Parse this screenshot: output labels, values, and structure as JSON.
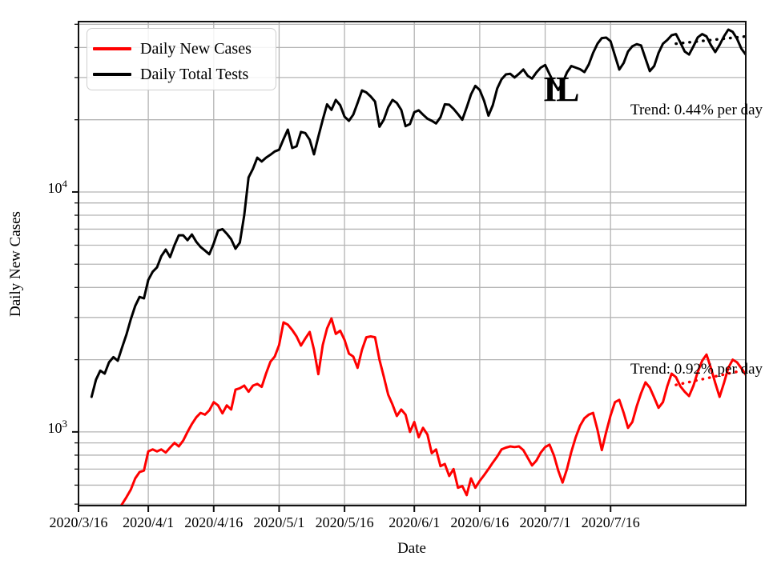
{
  "colors": {
    "background": "#ffffff",
    "grid": "#b4b4b4",
    "spine": "#111111",
    "cases_line": "#ff0000",
    "tests_line": "#000000"
  },
  "chart_data": {
    "type": "line",
    "title": "",
    "xlabel": "Date",
    "ylabel": "Daily New Cases",
    "annotation": "IL",
    "yscale": "log",
    "ylim": [
      493,
      51300
    ],
    "x_total_days": 153,
    "x_start_date": "2020/3/16",
    "x_end_date": "2020/8/16",
    "grid": "both",
    "legend_position": "upper left",
    "x_tick_days": [
      0,
      16,
      31,
      46,
      61,
      77,
      92,
      107,
      122
    ],
    "x_tick_labels": [
      "2020/3/16",
      "2020/4/1",
      "2020/4/16",
      "2020/5/1",
      "2020/5/16",
      "2020/6/1",
      "2020/6/16",
      "2020/7/1",
      "2020/7/16"
    ],
    "y_major_ticks": [
      10000,
      1000
    ],
    "y_major_tick_labels": [
      {
        "base": "10",
        "exp": "4"
      },
      {
        "base": "10",
        "exp": "3"
      }
    ],
    "y_minor_ticks": [
      500,
      600,
      700,
      800,
      900,
      2000,
      3000,
      4000,
      5000,
      6000,
      7000,
      8000,
      9000,
      20000,
      30000,
      40000,
      50000
    ],
    "dates": [
      "2020/3/16",
      "2020/3/17",
      "2020/3/18",
      "2020/3/19",
      "2020/3/20",
      "2020/3/21",
      "2020/3/22",
      "2020/3/23",
      "2020/3/24",
      "2020/3/25",
      "2020/3/26",
      "2020/3/27",
      "2020/3/28",
      "2020/3/29",
      "2020/3/30",
      "2020/3/31",
      "2020/4/1",
      "2020/4/2",
      "2020/4/3",
      "2020/4/4",
      "2020/4/5",
      "2020/4/6",
      "2020/4/7",
      "2020/4/8",
      "2020/4/9",
      "2020/4/10",
      "2020/4/11",
      "2020/4/12",
      "2020/4/13",
      "2020/4/14",
      "2020/4/15",
      "2020/4/16",
      "2020/4/17",
      "2020/4/18",
      "2020/4/19",
      "2020/4/20",
      "2020/4/21",
      "2020/4/22",
      "2020/4/23",
      "2020/4/24",
      "2020/4/25",
      "2020/4/26",
      "2020/4/27",
      "2020/4/28",
      "2020/4/29",
      "2020/4/30",
      "2020/5/1",
      "2020/5/2",
      "2020/5/3",
      "2020/5/4",
      "2020/5/5",
      "2020/5/6",
      "2020/5/7",
      "2020/5/8",
      "2020/5/9",
      "2020/5/10",
      "2020/5/11",
      "2020/5/12",
      "2020/5/13",
      "2020/5/14",
      "2020/5/15",
      "2020/5/16",
      "2020/5/17",
      "2020/5/18",
      "2020/5/19",
      "2020/5/20",
      "2020/5/21",
      "2020/5/22",
      "2020/5/23",
      "2020/5/24",
      "2020/5/25",
      "2020/5/26",
      "2020/5/27",
      "2020/5/28",
      "2020/5/29",
      "2020/5/30",
      "2020/5/31",
      "2020/6/1",
      "2020/6/2",
      "2020/6/3",
      "2020/6/4",
      "2020/6/5",
      "2020/6/6",
      "2020/6/7",
      "2020/6/8",
      "2020/6/9",
      "2020/6/10",
      "2020/6/11",
      "2020/6/12",
      "2020/6/13",
      "2020/6/14",
      "2020/6/15",
      "2020/6/16",
      "2020/6/17",
      "2020/6/18",
      "2020/6/19",
      "2020/6/20",
      "2020/6/21",
      "2020/6/22",
      "2020/6/23",
      "2020/6/24",
      "2020/6/25",
      "2020/6/26",
      "2020/6/27",
      "2020/6/28",
      "2020/6/29",
      "2020/6/30",
      "2020/7/1",
      "2020/7/2",
      "2020/7/3",
      "2020/7/4",
      "2020/7/5",
      "2020/7/6",
      "2020/7/7",
      "2020/7/8",
      "2020/7/9",
      "2020/7/10",
      "2020/7/11",
      "2020/7/12",
      "2020/7/13",
      "2020/7/14",
      "2020/7/15",
      "2020/7/16",
      "2020/7/17",
      "2020/7/18",
      "2020/7/19",
      "2020/7/20",
      "2020/7/21",
      "2020/7/22",
      "2020/7/23",
      "2020/7/24",
      "2020/7/25",
      "2020/7/26",
      "2020/7/27",
      "2020/7/28",
      "2020/7/29",
      "2020/7/30",
      "2020/7/31",
      "2020/8/1",
      "2020/8/2",
      "2020/8/3",
      "2020/8/4",
      "2020/8/5",
      "2020/8/6",
      "2020/8/7",
      "2020/8/8",
      "2020/8/9",
      "2020/8/10",
      "2020/8/11",
      "2020/8/12",
      "2020/8/13",
      "2020/8/14",
      "2020/8/15",
      "2020/8/16"
    ],
    "series": [
      {
        "name": "Daily New Cases",
        "color": "#ff0000",
        "values": [
          null,
          null,
          null,
          null,
          null,
          null,
          380,
          410,
          440,
          465,
          500,
          535,
          575,
          640,
          680,
          690,
          830,
          845,
          830,
          845,
          820,
          860,
          900,
          870,
          920,
          1000,
          1080,
          1150,
          1200,
          1180,
          1230,
          1330,
          1290,
          1195,
          1290,
          1240,
          1500,
          1520,
          1560,
          1470,
          1560,
          1585,
          1540,
          1750,
          1960,
          2060,
          2300,
          2860,
          2800,
          2660,
          2500,
          2290,
          2450,
          2610,
          2200,
          1740,
          2300,
          2700,
          2970,
          2560,
          2640,
          2420,
          2120,
          2060,
          1850,
          2200,
          2480,
          2500,
          2480,
          2000,
          1700,
          1430,
          1300,
          1165,
          1240,
          1180,
          1000,
          1100,
          950,
          1040,
          975,
          815,
          845,
          720,
          735,
          655,
          700,
          585,
          595,
          545,
          640,
          585,
          625,
          660,
          700,
          745,
          790,
          845,
          860,
          870,
          865,
          870,
          840,
          780,
          725,
          760,
          820,
          865,
          885,
          800,
          690,
          615,
          700,
          825,
          950,
          1060,
          1140,
          1180,
          1200,
          1020,
          840,
          1000,
          1170,
          1330,
          1360,
          1200,
          1040,
          1100,
          1280,
          1450,
          1610,
          1530,
          1390,
          1260,
          1330,
          1550,
          1750,
          1690,
          1550,
          1470,
          1410,
          1560,
          1780,
          1980,
          2100,
          1850,
          1600,
          1400,
          1600,
          1850,
          2000,
          1950,
          1840,
          1730
        ]
      },
      {
        "name": "Daily Total Tests",
        "color": "#000000",
        "values": [
          null,
          null,
          null,
          1400,
          1650,
          1800,
          1750,
          1950,
          2050,
          1980,
          2250,
          2550,
          2950,
          3350,
          3650,
          3600,
          4300,
          4650,
          4850,
          5400,
          5750,
          5350,
          6000,
          6600,
          6600,
          6300,
          6650,
          6200,
          5900,
          5700,
          5500,
          6100,
          6900,
          7000,
          6700,
          6350,
          5800,
          6150,
          8000,
          11500,
          12500,
          13900,
          13400,
          13900,
          14300,
          14750,
          15000,
          16600,
          18200,
          15250,
          15500,
          17800,
          17600,
          16500,
          14350,
          17000,
          20000,
          23200,
          22000,
          24200,
          23000,
          20600,
          19800,
          21000,
          23500,
          26500,
          26000,
          25000,
          23800,
          18700,
          20000,
          22500,
          24200,
          23500,
          22000,
          18800,
          19200,
          21500,
          21900,
          21000,
          20200,
          19800,
          19300,
          20500,
          23200,
          23100,
          22200,
          21100,
          20000,
          22500,
          25500,
          27700,
          26600,
          24000,
          20800,
          23000,
          27000,
          29500,
          30900,
          31100,
          30000,
          31100,
          32400,
          30500,
          29700,
          31500,
          33000,
          33800,
          31000,
          28500,
          26600,
          28500,
          31500,
          33500,
          33000,
          32500,
          31600,
          34000,
          38000,
          41500,
          43800,
          44000,
          42500,
          37000,
          32400,
          34500,
          38500,
          40500,
          41300,
          40800,
          36000,
          31900,
          33500,
          38000,
          41500,
          43000,
          45000,
          45500,
          42000,
          38500,
          37400,
          40500,
          44100,
          45500,
          44500,
          41000,
          38300,
          41000,
          44500,
          47500,
          46500,
          43500,
          39500,
          37400
        ]
      }
    ],
    "trend_lines": [
      {
        "series": "Daily Total Tests",
        "label": "Trend: 0.44% per day",
        "color": "#000000",
        "start_day": 137,
        "end_day": 153,
        "start_value": 41500,
        "end_value": 44500
      },
      {
        "series": "Daily New Cases",
        "label": "Trend: 0.92% per day",
        "color": "#ff0000",
        "start_day": 137,
        "end_day": 153,
        "start_value": 1570,
        "end_value": 1815
      }
    ]
  },
  "legend": {
    "items": [
      {
        "label": "Daily New Cases"
      },
      {
        "label": "Daily Total Tests"
      }
    ]
  }
}
